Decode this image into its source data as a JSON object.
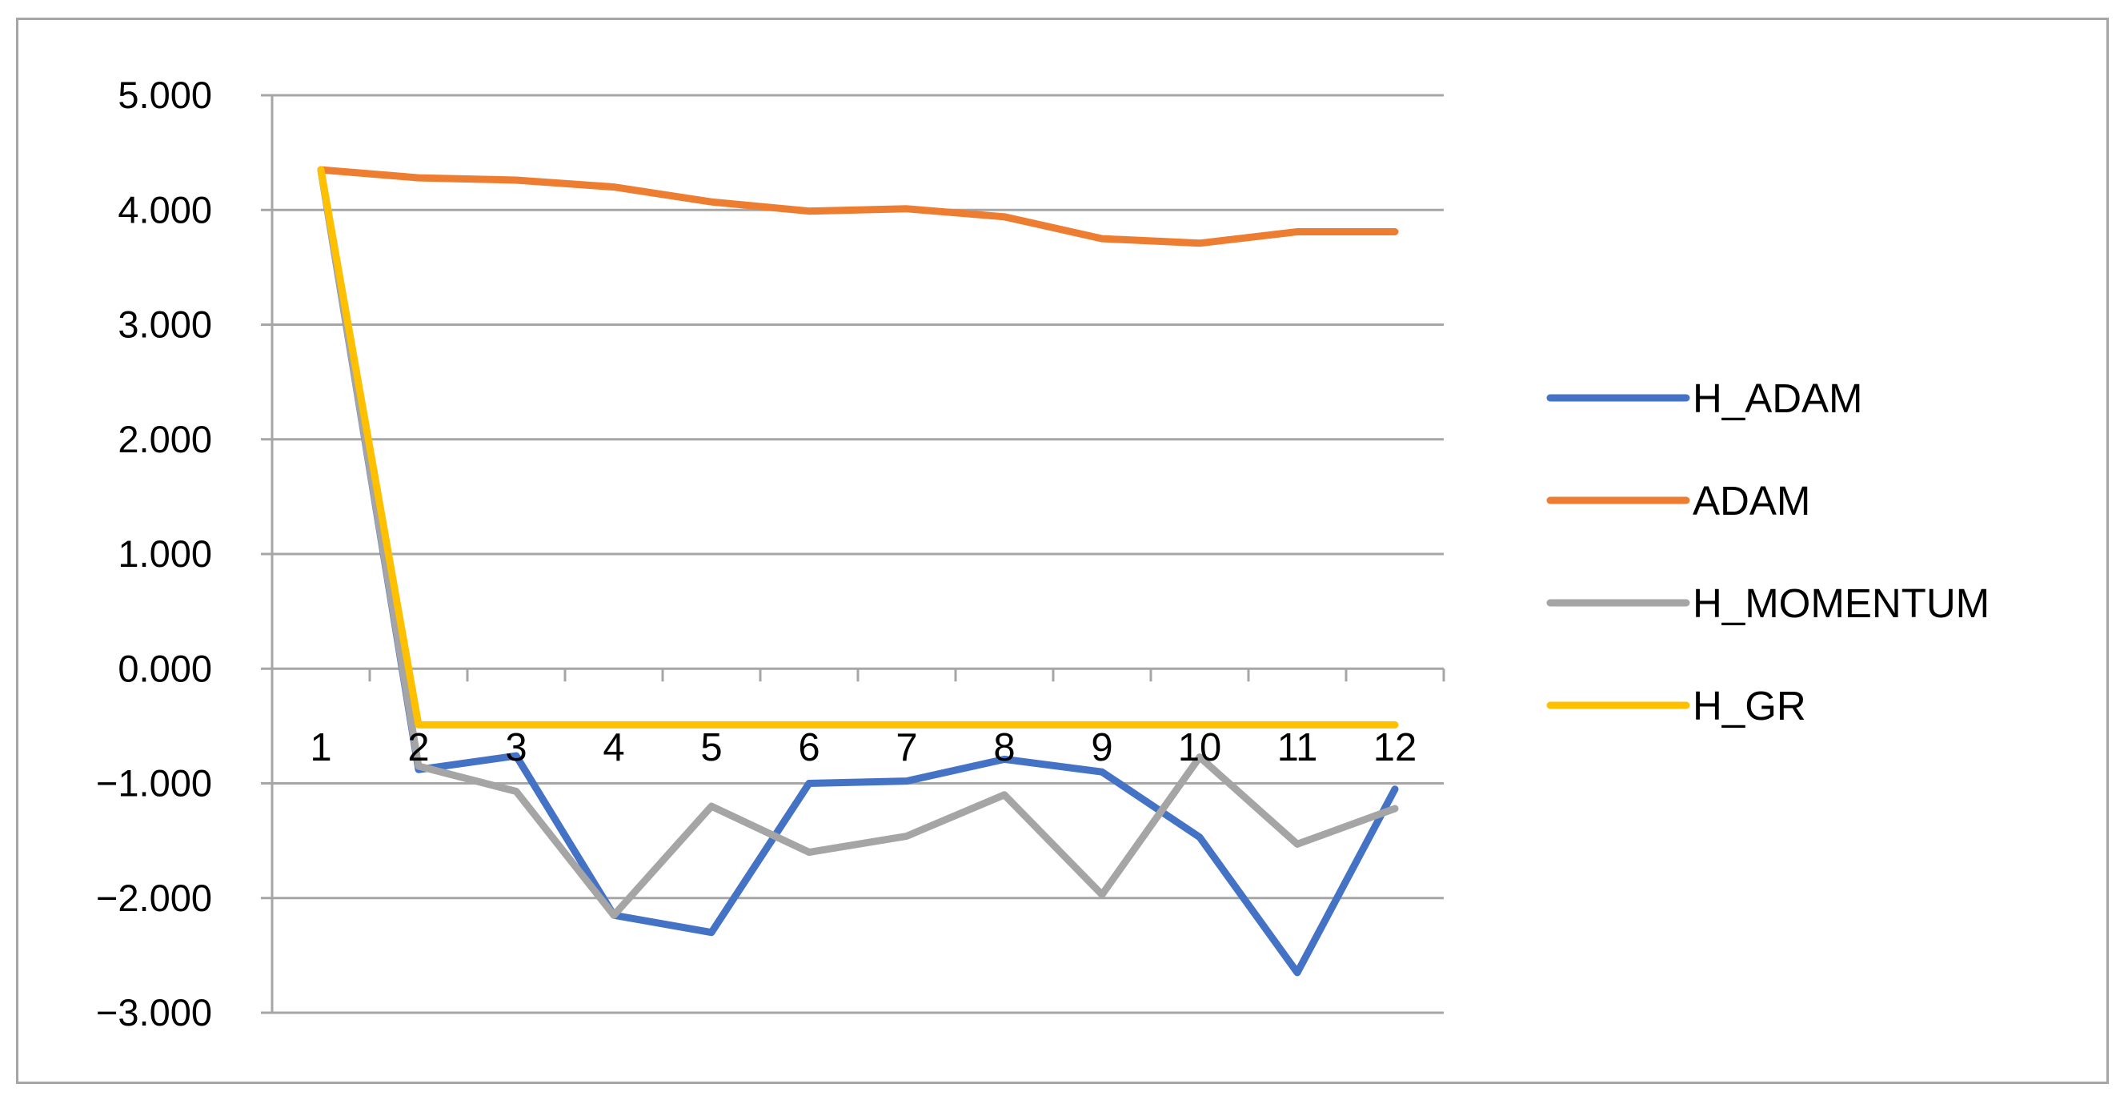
{
  "chart_data": {
    "type": "line",
    "title": "",
    "xlabel": "",
    "ylabel": "",
    "categories": [
      "1",
      "2",
      "3",
      "4",
      "5",
      "6",
      "7",
      "8",
      "9",
      "10",
      "11",
      "12"
    ],
    "ylim": [
      -3,
      5
    ],
    "yticks": [
      5,
      4,
      3,
      2,
      1,
      0,
      -1,
      -2,
      -3
    ],
    "ytick_labels": [
      "5.000",
      "4.000",
      "3.000",
      "2.000",
      "1.000",
      "0.000",
      "−1.000",
      "−2.000",
      "−3.000"
    ],
    "grid": true,
    "legend_position": "right",
    "series": [
      {
        "name": "H_ADAM",
        "color": "#4472c4",
        "values": [
          4.35,
          -0.88,
          -0.76,
          -2.15,
          -2.3,
          -1.0,
          -0.98,
          -0.79,
          -0.9,
          -1.47,
          -2.65,
          -1.05
        ]
      },
      {
        "name": "ADAM",
        "color": "#ed7d31",
        "values": [
          4.35,
          4.28,
          4.26,
          4.2,
          4.07,
          3.99,
          4.01,
          3.94,
          3.75,
          3.71,
          3.81,
          3.81
        ]
      },
      {
        "name": "H_MOMENTUM",
        "color": "#a5a5a5",
        "values": [
          4.35,
          -0.85,
          -1.07,
          -2.15,
          -1.2,
          -1.6,
          -1.46,
          -1.1,
          -1.97,
          -0.77,
          -1.53,
          -1.22
        ]
      },
      {
        "name": "H_GR",
        "color": "#ffc000",
        "values": [
          4.35,
          -0.49,
          -0.49,
          -0.49,
          -0.49,
          -0.49,
          -0.49,
          -0.49,
          -0.49,
          -0.49,
          -0.49,
          -0.49
        ]
      }
    ]
  }
}
